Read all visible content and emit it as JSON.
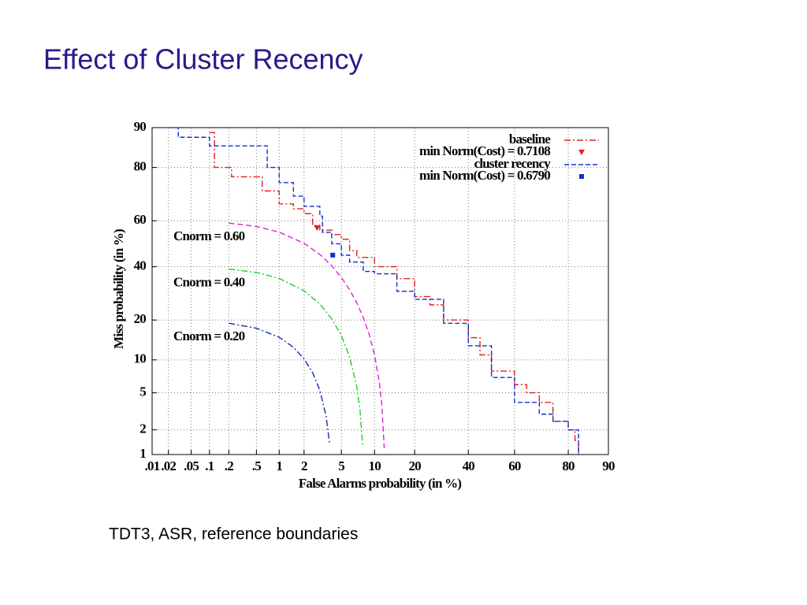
{
  "chart_data": {
    "type": "det",
    "title": "Effect of Cluster Recency",
    "caption": "TDT3, ASR, reference boundaries",
    "x_label": "False Alarms probability (in %)",
    "y_label": "Miss probability (in %)",
    "scale": "normal-deviate",
    "grid": true,
    "legend": "upper right",
    "xlim": [
      0.01,
      90
    ],
    "ylim": [
      1,
      90
    ],
    "xticks": [
      {
        "value": 0.01,
        "label": ".01"
      },
      {
        "value": 0.02,
        "label": ".02"
      },
      {
        "value": 0.05,
        "label": ".05"
      },
      {
        "value": 0.1,
        "label": ".1"
      },
      {
        "value": 0.2,
        "label": ".2"
      },
      {
        "value": 0.5,
        "label": ".5"
      },
      1,
      2,
      5,
      10,
      20,
      40,
      60,
      80,
      90
    ],
    "yticks": [
      1,
      2,
      5,
      10,
      20,
      40,
      60,
      80,
      90
    ],
    "series": [
      {
        "name": "baseline",
        "color": "#e02020",
        "dash": "8 3 2 3",
        "x": [
          0.1,
          0.12,
          0.2,
          0.22,
          0.5,
          0.6,
          0.9,
          1,
          1.5,
          2,
          2.5,
          3,
          4,
          5,
          6,
          7,
          10,
          15,
          20,
          25,
          30,
          40,
          45,
          50,
          60,
          65,
          70,
          75,
          80,
          82,
          83
        ],
        "values": [
          89,
          80,
          80,
          77,
          77,
          72,
          72,
          67,
          65,
          63,
          58,
          56,
          54,
          52,
          47,
          44,
          40,
          35,
          28,
          25,
          20,
          15,
          11,
          8,
          6,
          5,
          4,
          2.5,
          2,
          1.5,
          1
        ]
      },
      {
        "name": "cluster recency",
        "color": "#1030d0",
        "dash": "6 3",
        "x": [
          0.02,
          0.03,
          0.05,
          0.1,
          0.5,
          0.7,
          1,
          1.5,
          2,
          3,
          3.2,
          4,
          5,
          6,
          8,
          10,
          15,
          20,
          30,
          40,
          50,
          60,
          70,
          75,
          80,
          83
        ],
        "values": [
          90,
          88,
          88,
          86,
          86,
          80,
          75,
          70,
          66,
          62,
          55,
          50,
          45,
          42,
          38,
          37,
          30,
          27,
          19,
          13,
          7,
          4,
          3,
          2.5,
          2,
          1
        ]
      }
    ],
    "points": [
      {
        "name": "min Norm(Cost) = 0.7108",
        "color": "#e02020",
        "marker": "triangle-down",
        "x": 2.8,
        "value": 57
      },
      {
        "name": "min Norm(Cost) = 0.6790",
        "color": "#1030d0",
        "marker": "square",
        "x": 4.1,
        "value": 45
      }
    ],
    "curves": [
      {
        "label": "Cnorm = 0.60",
        "color": "#e020e0",
        "dash": "7 4",
        "x": [
          0.2,
          0.5,
          1,
          2,
          3,
          4,
          5,
          6,
          7,
          8,
          9,
          10,
          11,
          11.5,
          12
        ],
        "values": [
          59.02,
          57.55,
          55.1,
          50.2,
          45.3,
          40.4,
          35.5,
          30.6,
          25.7,
          20.8,
          15.9,
          11,
          6.1,
          3.65,
          1.2
        ]
      },
      {
        "label": "Cnorm = 0.40",
        "color": "#20d020",
        "dash": "8 3 2 3",
        "x": [
          0.2,
          0.5,
          1,
          2,
          3,
          4,
          5,
          6,
          7,
          7.5,
          7.9
        ],
        "values": [
          39.02,
          37.55,
          35.1,
          30.2,
          25.3,
          20.4,
          15.5,
          10.6,
          5.7,
          3.25,
          1.29
        ]
      },
      {
        "label": "Cnorm = 0.20",
        "color": "#1030b0",
        "dash": "8 3 2 3",
        "x": [
          0.2,
          0.5,
          1,
          1.5,
          2,
          2.5,
          3,
          3.5,
          3.8
        ],
        "values": [
          19.02,
          17.55,
          15.1,
          12.65,
          10.2,
          7.75,
          5.3,
          2.85,
          1.38
        ]
      }
    ]
  }
}
